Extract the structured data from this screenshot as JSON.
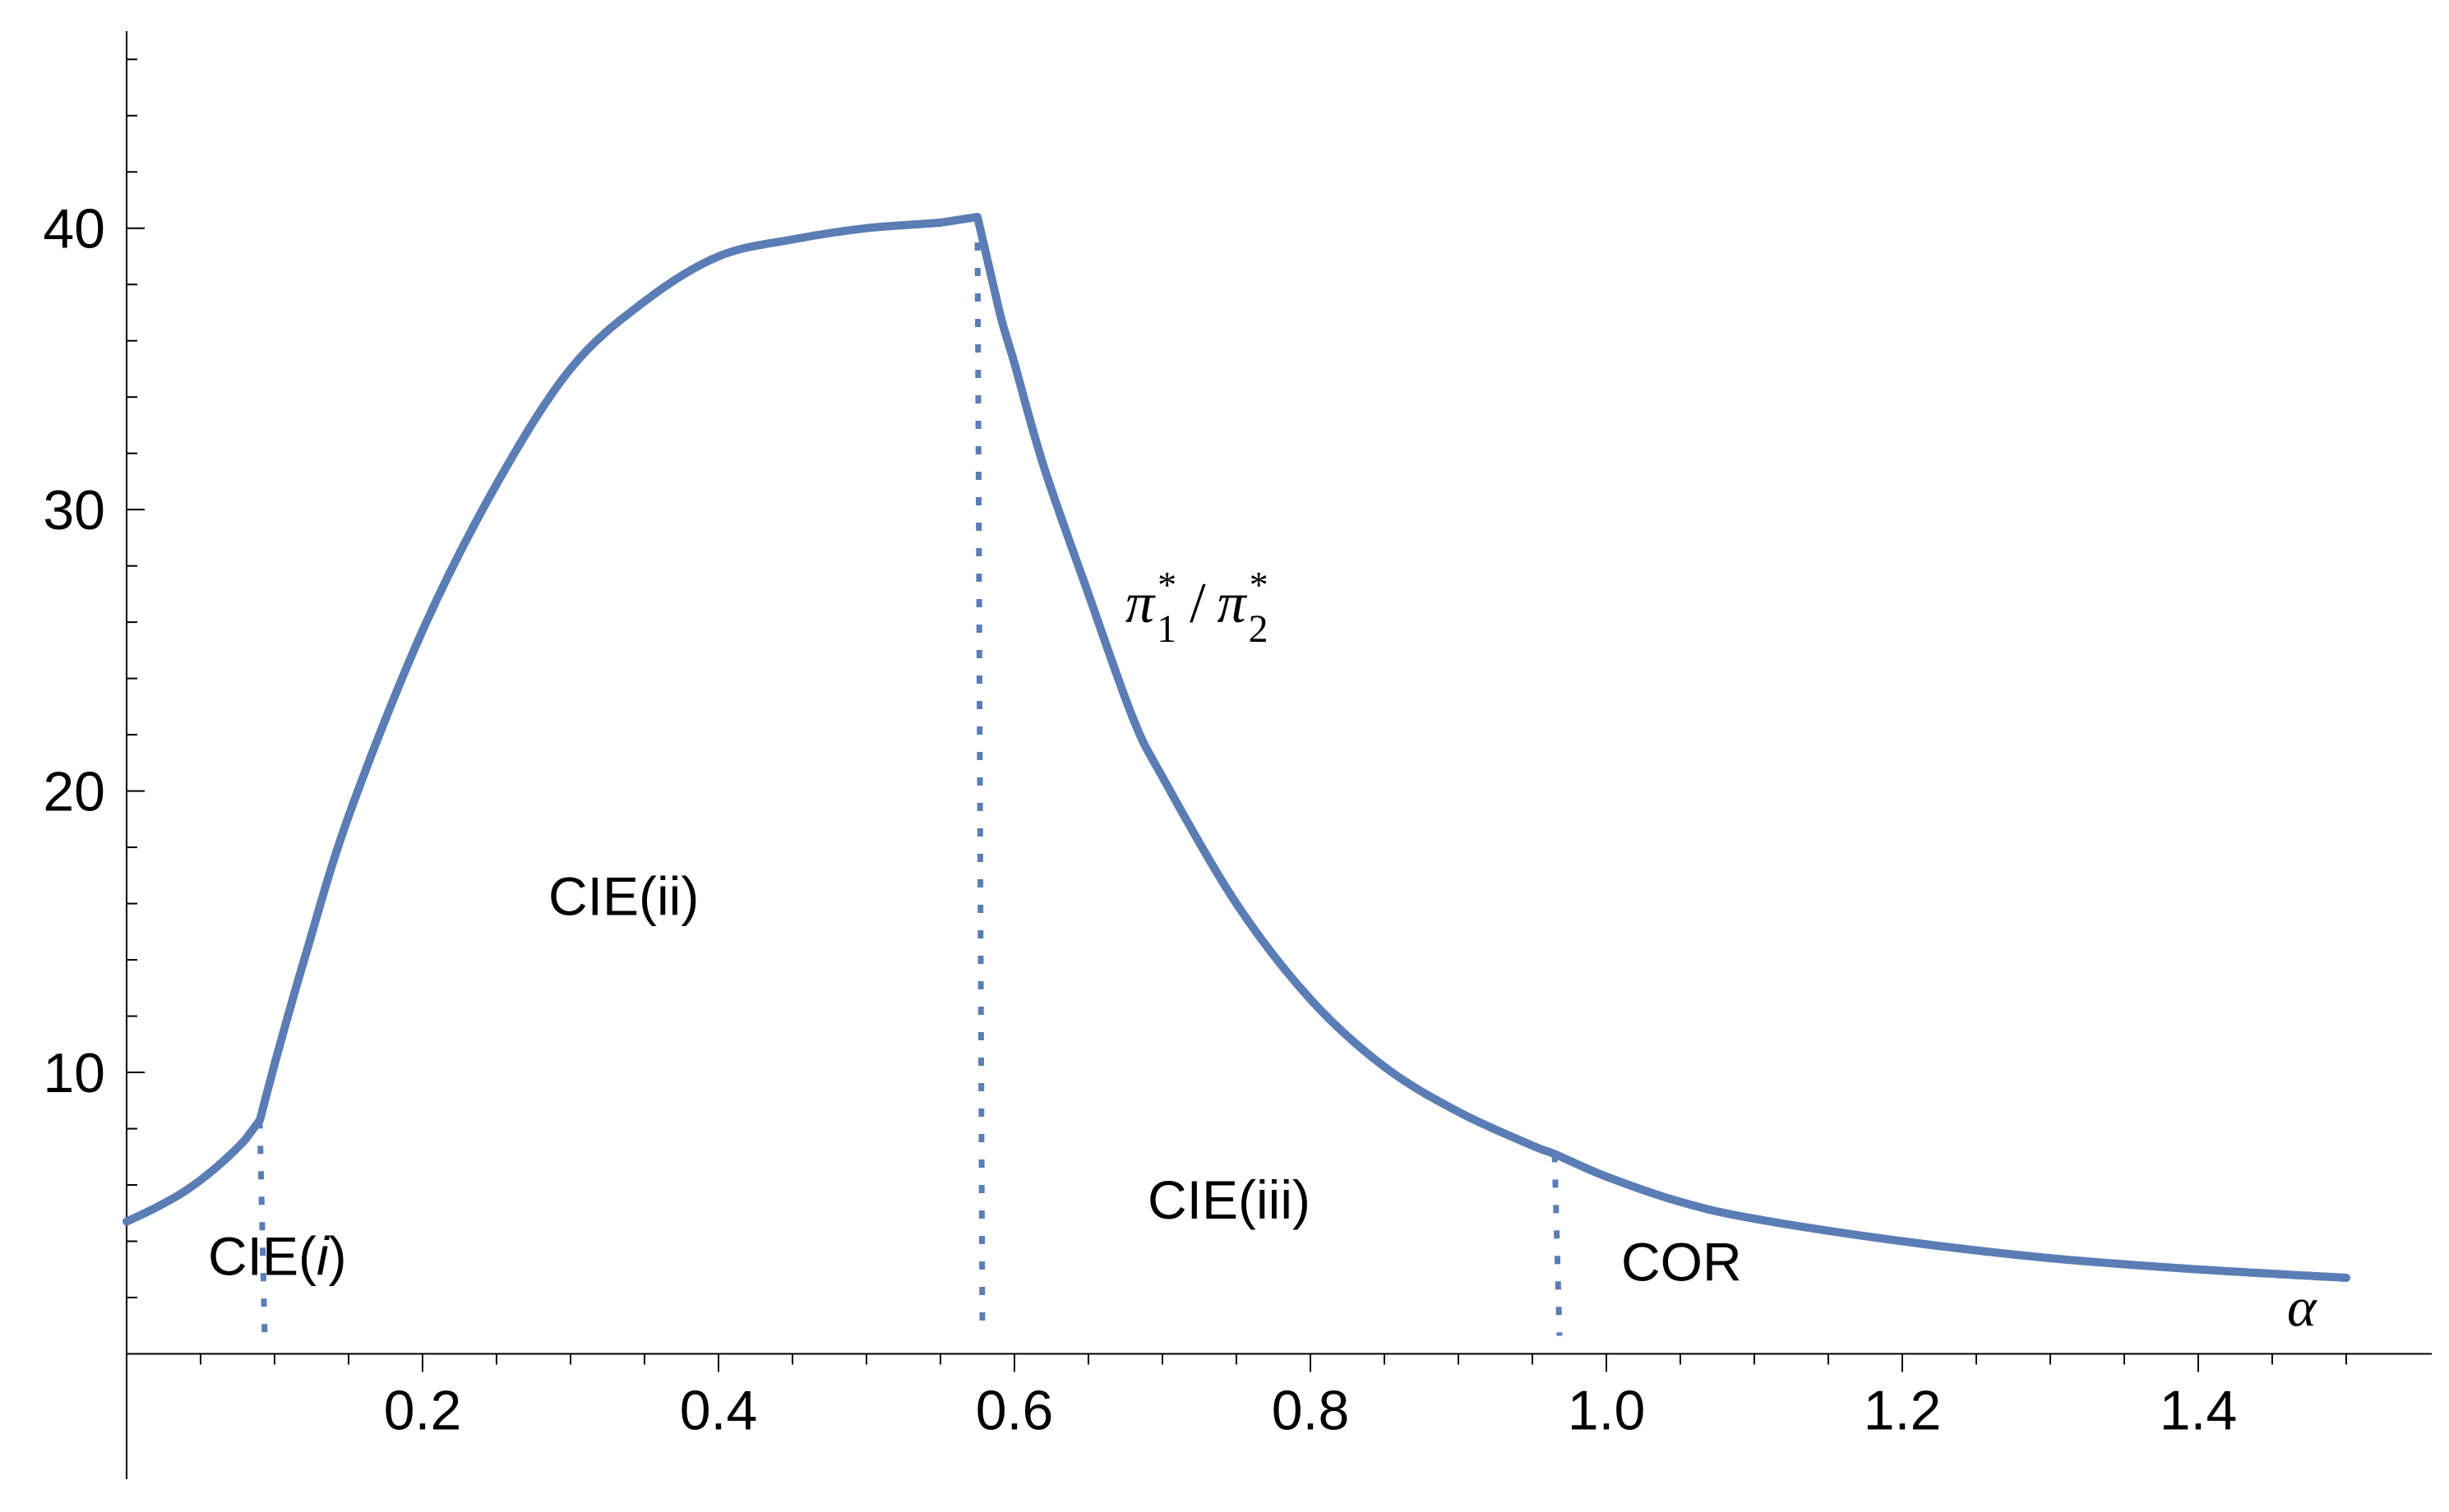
{
  "chart_data": {
    "type": "line",
    "title": "",
    "xlabel": "α",
    "ylabel": "",
    "xlim": [
      -0.005,
      1.53
    ],
    "ylim": [
      -2,
      47
    ],
    "x_ticks": [
      0.2,
      0.4,
      0.6,
      0.8,
      1.0,
      1.2,
      1.4
    ],
    "x_tick_labels": [
      "0.2",
      "0.4",
      "0.6",
      "0.8",
      "1.0",
      "1.2",
      "1.4"
    ],
    "y_ticks": [
      10,
      20,
      30,
      40
    ],
    "y_tick_labels": [
      "10",
      "20",
      "30",
      "40"
    ],
    "grid": false,
    "line_color": "#5b7db5",
    "series": [
      {
        "x": [
          0.0,
          0.02,
          0.04,
          0.06,
          0.08,
          0.09,
          0.1,
          0.12,
          0.15,
          0.2,
          0.25,
          0.3,
          0.35,
          0.4,
          0.45,
          0.5,
          0.55,
          0.575,
          0.59,
          0.6,
          0.62,
          0.65,
          0.68,
          0.7,
          0.75,
          0.8,
          0.85,
          0.9,
          0.95,
          0.965,
          1.0,
          1.05,
          1.1,
          1.2,
          1.3,
          1.4,
          1.5
        ],
        "y": [
          4.7,
          5.2,
          5.8,
          6.6,
          7.6,
          8.3,
          10.3,
          14.0,
          19.1,
          25.7,
          30.9,
          35.0,
          37.4,
          39.0,
          39.6,
          40.0,
          40.2,
          40.4,
          37.0,
          35.2,
          31.5,
          27.0,
          22.6,
          20.5,
          16.0,
          12.6,
          10.2,
          8.6,
          7.4,
          7.1,
          6.3,
          5.4,
          4.8,
          4.0,
          3.4,
          3.0,
          2.7
        ]
      }
    ],
    "boundaries": [
      {
        "x": 0.09,
        "y_top": 8.3
      },
      {
        "x": 0.575,
        "y_top": 40.4
      },
      {
        "x": 0.965,
        "y_top": 7.1
      }
    ],
    "annotations": {
      "cie_i": {
        "prefix": "CIE(",
        "italic": "i",
        "suffix": ")",
        "x": 0.055,
        "y": 2.8
      },
      "cie_ii": {
        "text": "CIE(ii)",
        "x": 0.285,
        "y": 15.6
      },
      "cie_iii": {
        "text": "CIE(iii)",
        "x": 0.69,
        "y": 4.8
      },
      "cor": {
        "text": "COR",
        "x": 1.01,
        "y": 2.6
      },
      "ratio": {
        "pi": "π",
        "sub1": "1",
        "sub2": "2",
        "star": "*",
        "slash": "/",
        "x": 0.675,
        "y": 26.0
      },
      "alpha": {
        "text": "α",
        "x": 1.46,
        "y": 1.0
      }
    }
  }
}
